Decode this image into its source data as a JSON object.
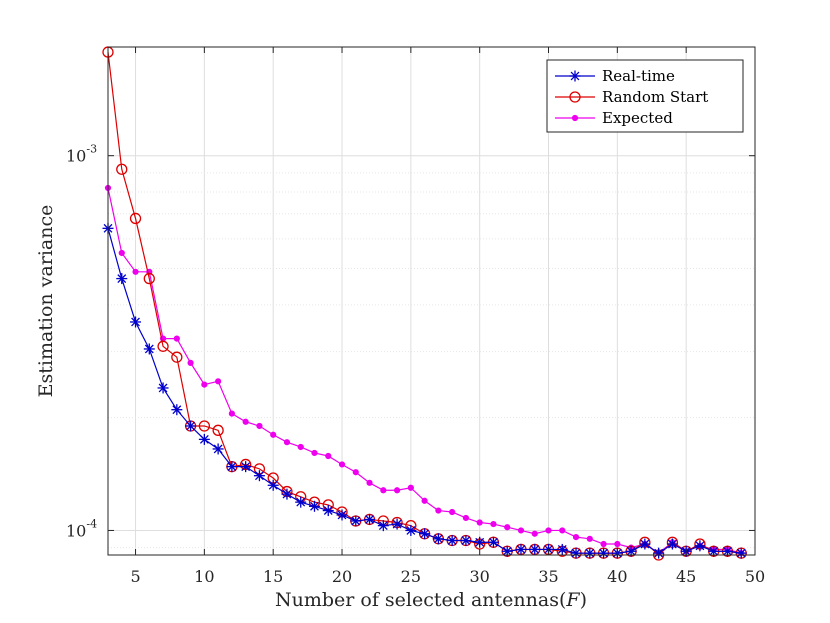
{
  "chart_data": {
    "type": "line",
    "title": "",
    "xlabel": "Number of selected antennas(",
    "xlabel_var": "F",
    "xlabel_close": ")",
    "ylabel": "Estimation variance",
    "yscale": "log",
    "xlim": [
      3,
      50
    ],
    "ylim": [
      8.6e-05,
      0.00195
    ],
    "grid": true,
    "legend_location": "top-right",
    "xticks": [
      5,
      10,
      15,
      20,
      25,
      30,
      35,
      40,
      45,
      50
    ],
    "yticks": [
      {
        "value": 0.0001,
        "base": "10",
        "exp": "-4"
      },
      {
        "value": 0.001,
        "base": "10",
        "exp": "-3"
      }
    ],
    "x": [
      3,
      4,
      5,
      6,
      7,
      8,
      9,
      10,
      11,
      12,
      13,
      14,
      15,
      16,
      17,
      18,
      19,
      20,
      21,
      22,
      23,
      24,
      25,
      26,
      27,
      28,
      29,
      30,
      31,
      32,
      33,
      34,
      35,
      36,
      37,
      38,
      39,
      40,
      41,
      42,
      43,
      44,
      45,
      46,
      47,
      48,
      49
    ],
    "series": [
      {
        "name": "Real-time",
        "color": "#0000cc",
        "marker": "asterisk",
        "values": [
          0.00064,
          0.00047,
          0.00036,
          0.000305,
          0.00024,
          0.00021,
          0.00019,
          0.000175,
          0.000165,
          0.000148,
          0.000148,
          0.00014,
          0.000132,
          0.000125,
          0.000119,
          0.000116,
          0.000113,
          0.00011,
          0.000106,
          0.000107,
          0.000103,
          0.000104,
          0.0001,
          9.8e-05,
          9.5e-05,
          9.4e-05,
          9.4e-05,
          9.3e-05,
          9.3e-05,
          8.8e-05,
          8.9e-05,
          8.9e-05,
          8.9e-05,
          8.9e-05,
          8.7e-05,
          8.7e-05,
          8.7e-05,
          8.7e-05,
          8.8e-05,
          9.2e-05,
          8.7e-05,
          9.2e-05,
          8.8e-05,
          9.1e-05,
          8.8e-05,
          8.8e-05,
          8.7e-05
        ]
      },
      {
        "name": "Random Start",
        "color": "#dd0000",
        "marker": "circle",
        "values": [
          0.00189,
          0.00092,
          0.00068,
          0.00047,
          0.00031,
          0.00029,
          0.00019,
          0.00019,
          0.000185,
          0.000148,
          0.00015,
          0.000146,
          0.000138,
          0.000127,
          0.000123,
          0.000119,
          0.000117,
          0.000112,
          0.000106,
          0.000107,
          0.000106,
          0.000105,
          0.000103,
          9.8e-05,
          9.5e-05,
          9.4e-05,
          9.4e-05,
          9.2e-05,
          9.3e-05,
          8.8e-05,
          8.9e-05,
          8.9e-05,
          8.9e-05,
          8.8e-05,
          8.7e-05,
          8.7e-05,
          8.7e-05,
          8.7e-05,
          8.8e-05,
          9.3e-05,
          8.6e-05,
          9.3e-05,
          8.8e-05,
          9.2e-05,
          8.8e-05,
          8.8e-05,
          8.7e-05
        ]
      },
      {
        "name": "Expected",
        "color": "#ee00ee",
        "marker": "dot",
        "values": [
          0.00082,
          0.00055,
          0.00049,
          0.00049,
          0.000325,
          0.000325,
          0.00028,
          0.000245,
          0.00025,
          0.000205,
          0.000195,
          0.00019,
          0.00018,
          0.000172,
          0.000167,
          0.000161,
          0.000158,
          0.00015,
          0.000143,
          0.000134,
          0.000128,
          0.000128,
          0.00013,
          0.00012,
          0.000113,
          0.000112,
          0.000108,
          0.000105,
          0.000104,
          0.000102,
          0.0001,
          9.8e-05,
          0.0001,
          0.0001,
          9.6e-05,
          9.5e-05,
          9.2e-05,
          9.2e-05,
          9e-05,
          9.2e-05,
          8.7e-05,
          9.3e-05,
          8.8e-05,
          9.1e-05,
          8.9e-05,
          8.9e-05,
          8.7e-05
        ]
      }
    ]
  }
}
